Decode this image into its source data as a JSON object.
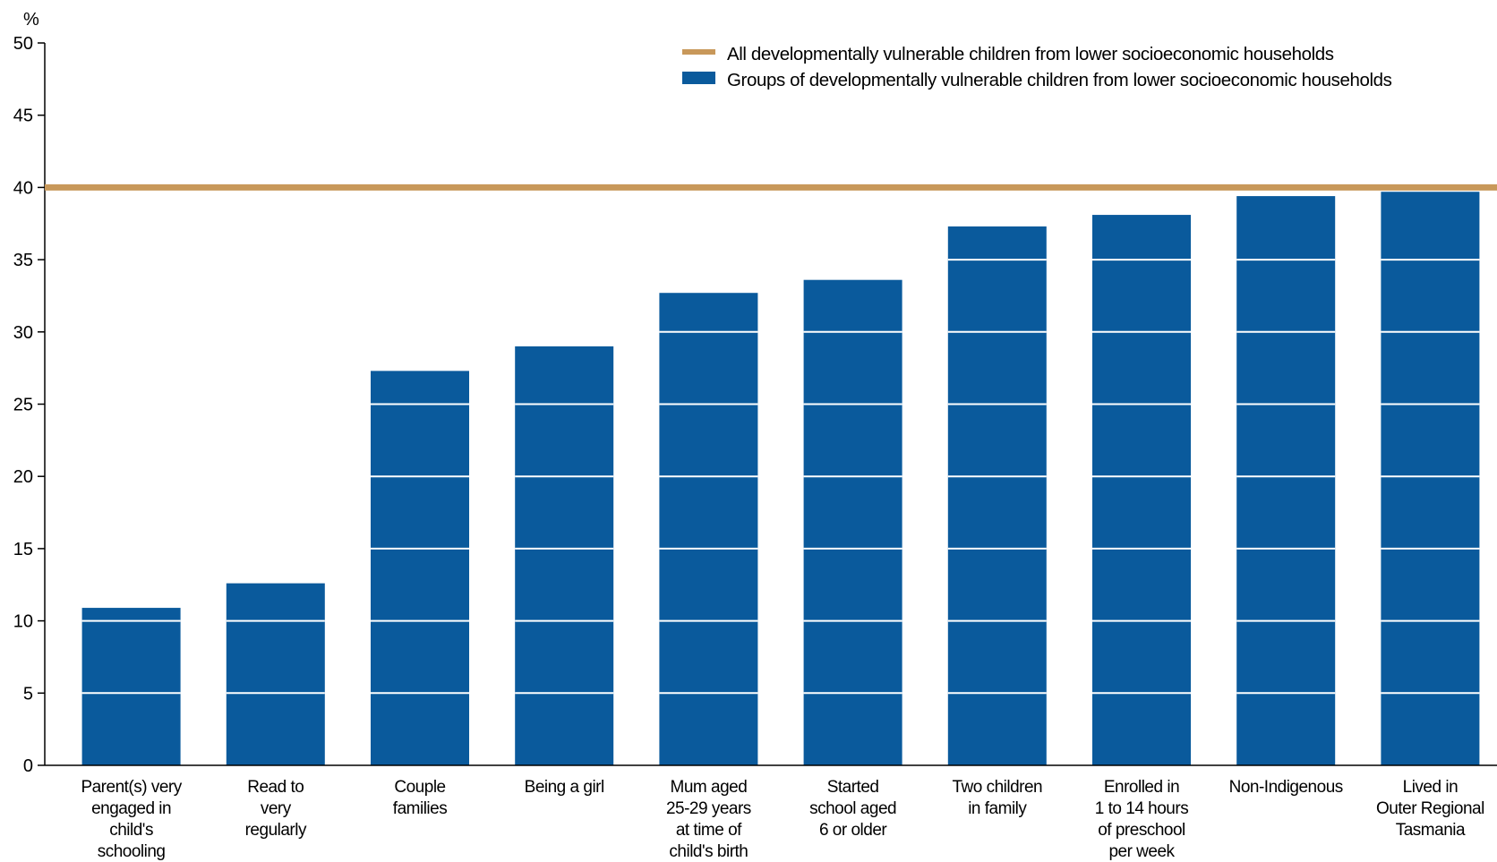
{
  "chart_data": {
    "type": "bar",
    "ylabel": "%",
    "ylim": [
      0,
      50
    ],
    "yticks": [
      "0",
      "5",
      "10",
      "15",
      "20",
      "25",
      "30",
      "35",
      "40",
      "45",
      "50"
    ],
    "grid": "white lines across bars",
    "legend_position": "top-right",
    "categories": [
      [
        "Parent(s) very",
        "engaged in",
        "child's",
        "schooling"
      ],
      [
        "Read to",
        "very",
        "regularly"
      ],
      [
        "Couple",
        "families"
      ],
      [
        "Being a girl"
      ],
      [
        "Mum aged",
        "25-29 years",
        "at time of",
        "child's birth"
      ],
      [
        "Started",
        "school aged",
        "6 or older"
      ],
      [
        "Two children",
        "in family"
      ],
      [
        "Enrolled in",
        "1 to 14 hours",
        "of preschool",
        "per week"
      ],
      [
        "Non-Indigenous"
      ],
      [
        "Lived in",
        "Outer Regional",
        "Tasmania"
      ]
    ],
    "series": [
      {
        "name": "Groups of developmentally vulnerable children from lower socioeconomic households",
        "type": "bar",
        "color": "#0a5a9c",
        "values": [
          10.9,
          12.6,
          27.3,
          29.0,
          32.7,
          33.6,
          37.3,
          38.1,
          39.4,
          39.7
        ]
      },
      {
        "name": "All developmentally vulnerable children from lower socioeconomic households",
        "type": "reference-line",
        "color": "#c8985a",
        "value": 40
      }
    ]
  }
}
